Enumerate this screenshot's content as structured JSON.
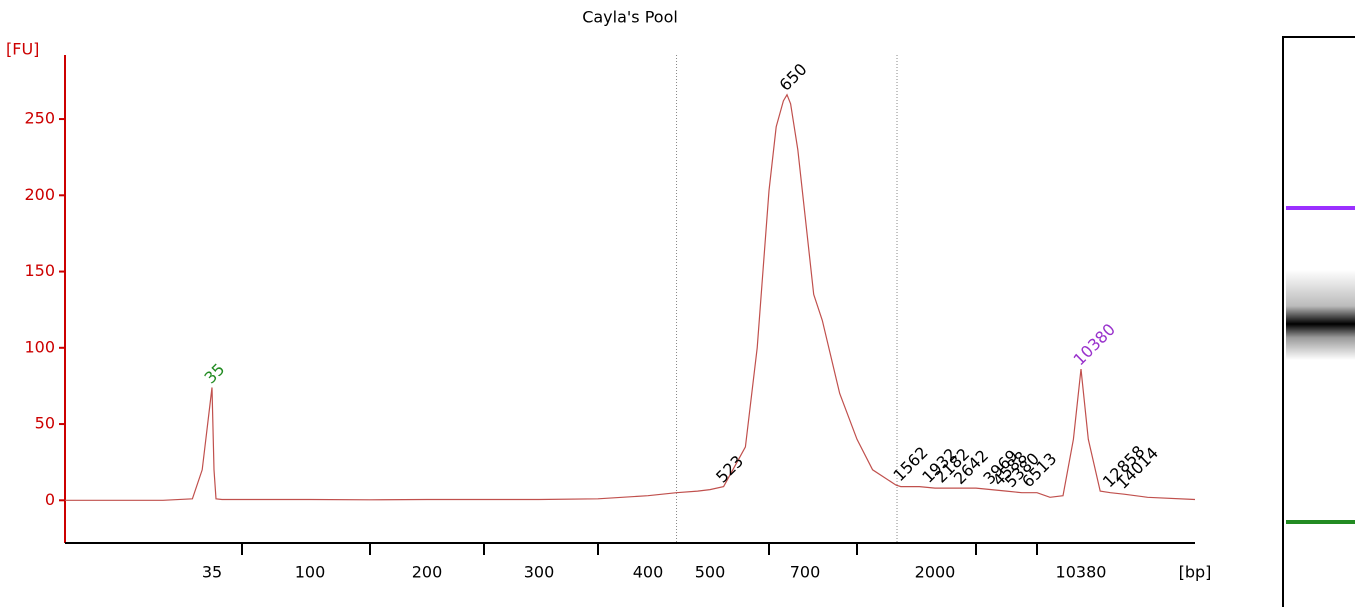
{
  "chart_data": {
    "type": "line",
    "title": "Cayla's Pool",
    "ylabel": "[FU]",
    "xlabel": "[bp]",
    "xlim": [
      20,
      20000
    ],
    "ylim": [
      -28,
      292
    ],
    "yticks": [
      0,
      50,
      100,
      150,
      200,
      250
    ],
    "xticks": [
      35,
      100,
      200,
      300,
      400,
      500,
      700,
      2000,
      10380
    ],
    "xminor_ticks": [
      50,
      150,
      250,
      350,
      600,
      1000,
      3000,
      7000
    ],
    "region_bounds": [
      446,
      1513
    ],
    "series": [
      {
        "color": "#c0504d",
        "x": [
          20,
          30,
          33,
          34,
          35,
          36,
          37,
          40,
          50,
          100,
          150,
          200,
          300,
          350,
          400,
          446,
          480,
          500,
          523,
          560,
          580,
          600,
          620,
          640,
          650,
          660,
          680,
          700,
          750,
          800,
          900,
          1000,
          1200,
          1500,
          1562,
          1800,
          2000,
          2500,
          3000,
          4000,
          5000,
          6000,
          7000,
          8000,
          9000,
          9800,
          10380,
          11000,
          12000,
          12858,
          14014,
          16000,
          20000
        ],
        "values": [
          0,
          0,
          1,
          20,
          74,
          20,
          1,
          0.5,
          0.5,
          0.5,
          0.3,
          0.5,
          0.5,
          1,
          3,
          5,
          6,
          7,
          9,
          35,
          100,
          203,
          245,
          262,
          266,
          260,
          230,
          187,
          135,
          118,
          70,
          40,
          20,
          10,
          9,
          9,
          8,
          8,
          8,
          7,
          6,
          5,
          5,
          2,
          3,
          40,
          86,
          40,
          6,
          5,
          4,
          2,
          0.5
        ]
      }
    ],
    "annotations": [
      {
        "x": 35,
        "y": 74,
        "color": "#228b22"
      },
      {
        "x": 523,
        "y": 9,
        "color": "#000000"
      },
      {
        "x": 650,
        "y": 266,
        "color": "#000000"
      },
      {
        "x": 1562,
        "y": 10,
        "color": "#000000"
      },
      {
        "x": 1932,
        "y": 9,
        "color": "#000000"
      },
      {
        "x": 2182,
        "y": 9,
        "color": "#000000"
      },
      {
        "x": 2642,
        "y": 8,
        "color": "#000000"
      },
      {
        "x": 3969,
        "y": 8,
        "color": "#000000"
      },
      {
        "x": 4588,
        "y": 7,
        "color": "#000000"
      },
      {
        "x": 5380,
        "y": 6,
        "color": "#000000"
      },
      {
        "x": 6513,
        "y": 6,
        "color": "#000000"
      },
      {
        "x": 10380,
        "y": 86,
        "color": "#9932cc"
      },
      {
        "x": 12858,
        "y": 6,
        "color": "#000000"
      },
      {
        "x": 14014,
        "y": 5,
        "color": "#000000"
      }
    ]
  }
}
